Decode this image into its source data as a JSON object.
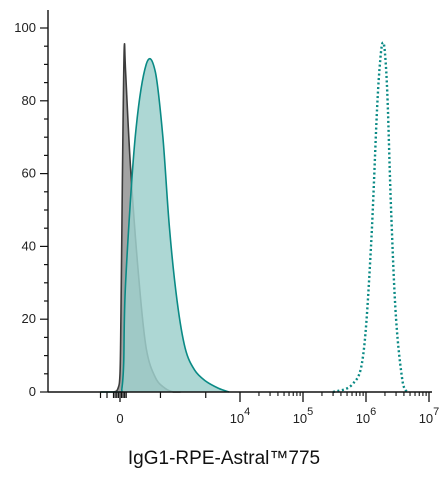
{
  "chart_data": {
    "type": "area",
    "title": "",
    "xlabel": "IgG1-RPE-Astral™775",
    "ylabel": "",
    "xscale": "biexponential",
    "ylim": [
      0,
      100
    ],
    "y_ticks": [
      "0",
      "20",
      "40",
      "60",
      "80",
      "100"
    ],
    "x_tick_labels": [
      {
        "base": "0",
        "exp": ""
      },
      {
        "base": "10",
        "exp": "4"
      },
      {
        "base": "10",
        "exp": "5"
      },
      {
        "base": "10",
        "exp": "6"
      },
      {
        "base": "10",
        "exp": "7"
      }
    ],
    "x_tick_values": [
      0,
      10000,
      100000,
      1000000,
      10000000
    ],
    "series": [
      {
        "style": "filled-gray",
        "fill": "#a3a3a3",
        "stroke": "#3c3c3c",
        "x": [
          -3000,
          -1000,
          -300,
          0,
          150,
          300,
          500,
          700,
          900,
          1100,
          1300,
          1500,
          1800,
          2200,
          2600,
          3000
        ],
        "y": [
          0,
          0,
          1,
          5,
          20,
          45,
          75,
          95,
          88,
          60,
          30,
          12,
          4,
          1,
          0,
          0
        ]
      },
      {
        "style": "filled-teal",
        "fill": "#9fd0cc",
        "stroke": "#0a8a85",
        "x": [
          -3000,
          0,
          300,
          600,
          900,
          1200,
          1500,
          1800,
          2100,
          2400,
          2800,
          3300,
          4000,
          5000,
          6500,
          8000
        ],
        "y": [
          0,
          0,
          1,
          8,
          30,
          70,
          90,
          88,
          70,
          45,
          25,
          12,
          6,
          3,
          1,
          0
        ]
      },
      {
        "style": "dotted-teal",
        "stroke": "#0a8a85",
        "x": [
          300000,
          600000,
          900000,
          1200000,
          1500000,
          1700000,
          1850000,
          2000000,
          2200000,
          2500000,
          3000000,
          3800000,
          4500000
        ],
        "y": [
          0,
          2,
          10,
          40,
          78,
          92,
          96,
          93,
          80,
          50,
          20,
          3,
          0
        ]
      }
    ]
  }
}
